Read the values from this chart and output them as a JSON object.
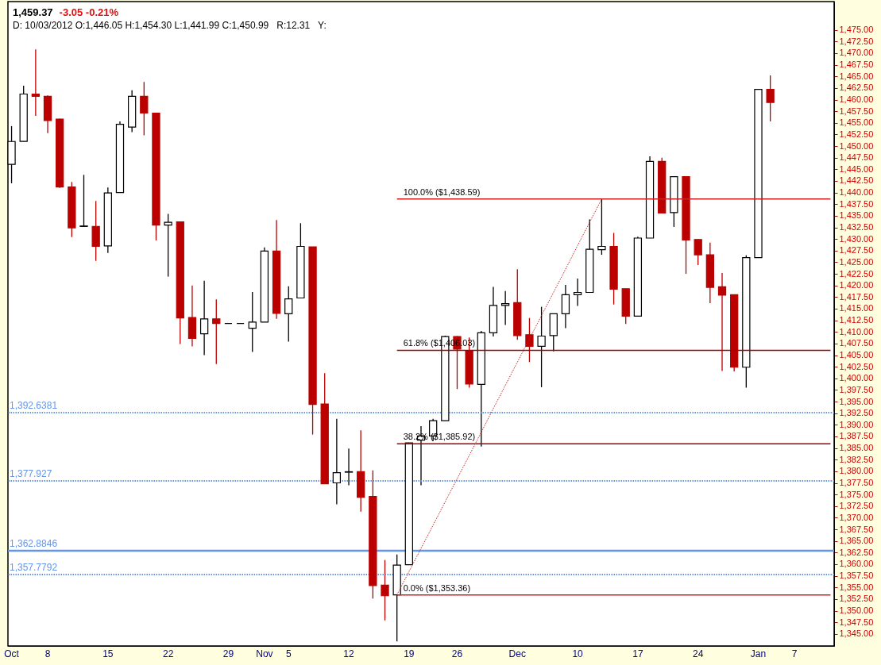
{
  "chart_data": {
    "type": "candlestick",
    "title": "1,459.37",
    "subtitle": "D: 10/03/2012 O:1,446.05 H:1,454.30 L:1,441.99 C:1,450.99   R:12.31   Y:",
    "annotations": [
      "-3.05  -0.21%"
    ],
    "categories": [
      "Oct",
      null,
      null,
      "8",
      null,
      null,
      null,
      null,
      "15",
      null,
      null,
      null,
      null,
      "22",
      null,
      null,
      null,
      null,
      "29",
      null,
      null,
      "Nov",
      null,
      "5",
      null,
      null,
      null,
      null,
      "12",
      null,
      null,
      null,
      null,
      "19",
      null,
      null,
      null,
      "26",
      null,
      null,
      null,
      null,
      "Dec",
      null,
      null,
      null,
      null,
      "10",
      null,
      null,
      null,
      null,
      "17",
      null,
      null,
      null,
      null,
      "24",
      null,
      null,
      null,
      null,
      "Jan",
      null,
      null,
      "7",
      null,
      null,
      null
    ],
    "ohlc": [
      [
        1446.05,
        1454.3,
        1441.99,
        1450.99
      ],
      [
        1451.0,
        1463.0,
        1451.0,
        1461.2
      ],
      [
        1461.2,
        1470.8,
        1456.5,
        1460.7
      ],
      [
        1460.7,
        1460.9,
        1452.8,
        1455.5
      ],
      [
        1455.8,
        1455.9,
        1441.0,
        1441.2
      ],
      [
        1441.2,
        1442.3,
        1430.4,
        1432.4
      ],
      [
        1432.7,
        1443.8,
        1432.7,
        1432.8
      ],
      [
        1432.7,
        1438.2,
        1425.3,
        1428.4
      ],
      [
        1428.5,
        1441.1,
        1427.0,
        1439.9
      ],
      [
        1440.0,
        1455.3,
        1440.0,
        1454.7
      ],
      [
        1454.1,
        1462.0,
        1453.0,
        1460.7
      ],
      [
        1460.7,
        1463.8,
        1452.3,
        1457.1
      ],
      [
        1457.1,
        1457.1,
        1429.7,
        1433.0
      ],
      [
        1433.0,
        1435.4,
        1421.9,
        1433.6
      ],
      [
        1433.7,
        1433.7,
        1407.4,
        1413.0
      ],
      [
        1413.1,
        1420.0,
        1406.9,
        1408.6
      ],
      [
        1409.6,
        1421.0,
        1405.0,
        1412.8
      ],
      [
        1412.8,
        1417.0,
        1403.1,
        1411.8
      ],
      [
        1411.8,
        1411.8,
        1411.8,
        1411.8
      ],
      [
        1411.8,
        1411.8,
        1411.8,
        1411.8
      ],
      [
        1410.8,
        1418.6,
        1405.7,
        1412.1
      ],
      [
        1412.1,
        1428.2,
        1412.1,
        1427.4
      ],
      [
        1427.4,
        1434.1,
        1412.8,
        1414.0
      ],
      [
        1413.9,
        1419.8,
        1407.9,
        1417.1
      ],
      [
        1417.3,
        1433.4,
        1417.3,
        1428.4
      ],
      [
        1428.3,
        1428.3,
        1387.9,
        1394.4
      ],
      [
        1394.5,
        1401.1,
        1377.3,
        1377.3
      ],
      [
        1377.5,
        1391.3,
        1372.9,
        1379.7
      ],
      [
        1379.8,
        1384.9,
        1377.0,
        1379.9
      ],
      [
        1379.9,
        1388.8,
        1371.3,
        1374.4
      ],
      [
        1374.6,
        1380.2,
        1352.6,
        1355.4
      ],
      [
        1355.5,
        1360.9,
        1347.9,
        1353.2
      ],
      [
        1353.4,
        1362.1,
        1343.4,
        1359.8
      ],
      [
        1359.9,
        1386.1,
        1359.9,
        1386.1
      ],
      [
        1386.7,
        1389.7,
        1377.0,
        1387.6
      ],
      [
        1387.6,
        1391.3,
        1386.5,
        1390.9
      ],
      [
        1390.9,
        1409.2,
        1390.9,
        1409.0
      ],
      [
        1409.0,
        1409.1,
        1397.7,
        1406.3
      ],
      [
        1406.0,
        1408.8,
        1398.0,
        1398.8
      ],
      [
        1398.7,
        1410.2,
        1385.3,
        1409.8
      ],
      [
        1409.8,
        1419.7,
        1409.0,
        1415.7
      ],
      [
        1415.7,
        1418.8,
        1411.5,
        1416.1
      ],
      [
        1416.3,
        1423.5,
        1408.3,
        1409.2
      ],
      [
        1409.4,
        1413.0,
        1403.5,
        1406.9
      ],
      [
        1406.9,
        1415.4,
        1398.1,
        1409.1
      ],
      [
        1409.2,
        1413.9,
        1405.8,
        1413.9
      ],
      [
        1413.9,
        1420.1,
        1410.8,
        1418.0
      ],
      [
        1418.0,
        1421.5,
        1415.6,
        1418.5
      ],
      [
        1418.5,
        1434.2,
        1418.5,
        1427.8
      ],
      [
        1427.7,
        1438.6,
        1426.6,
        1428.4
      ],
      [
        1428.4,
        1431.3,
        1415.9,
        1419.2
      ],
      [
        1419.3,
        1419.3,
        1411.7,
        1413.4
      ],
      [
        1413.4,
        1430.5,
        1413.4,
        1430.2
      ],
      [
        1430.2,
        1447.8,
        1430.2,
        1446.7
      ],
      [
        1446.7,
        1447.5,
        1435.6,
        1435.6
      ],
      [
        1435.7,
        1443.4,
        1432.6,
        1443.4
      ],
      [
        1443.4,
        1443.4,
        1422.5,
        1429.8
      ],
      [
        1429.9,
        1429.9,
        1424.4,
        1426.6
      ],
      [
        1426.6,
        1429.2,
        1416.2,
        1419.6
      ],
      [
        1419.7,
        1422.7,
        1401.6,
        1417.9
      ],
      [
        1418.0,
        1418.0,
        1401.5,
        1402.4
      ],
      [
        1402.4,
        1426.5,
        1398.0,
        1426.0
      ],
      [
        1426.0,
        1462.2,
        1426.0,
        1462.2
      ],
      [
        1462.2,
        1465.2,
        1455.3,
        1459.4
      ],
      null,
      null,
      null,
      null,
      null
    ],
    "colors": [
      "#ffffff",
      "#ffffff",
      "#bb0000",
      "#bb0000",
      "#bb0000",
      "#bb0000",
      "#ffffff",
      "#bb0000",
      "#ffffff",
      "#ffffff",
      "#ffffff",
      "#bb0000",
      "#bb0000",
      "#ffffff",
      "#bb0000",
      "#bb0000",
      "#ffffff",
      "#bb0000",
      "#000000",
      "#000000",
      "#ffffff",
      "#ffffff",
      "#bb0000",
      "#ffffff",
      "#ffffff",
      "#bb0000",
      "#bb0000",
      "#ffffff",
      "#ffffff",
      "#bb0000",
      "#bb0000",
      "#bb0000",
      "#ffffff",
      "#ffffff",
      "#ffffff",
      "#ffffff",
      "#ffffff",
      "#bb0000",
      "#bb0000",
      "#ffffff",
      "#ffffff",
      "#ffffff",
      "#bb0000",
      "#bb0000",
      "#ffffff",
      "#ffffff",
      "#ffffff",
      "#ffffff",
      "#ffffff",
      "#ffffff",
      "#bb0000",
      "#bb0000",
      "#ffffff",
      "#ffffff",
      "#bb0000",
      "#ffffff",
      "#bb0000",
      "#bb0000",
      "#bb0000",
      "#bb0000",
      "#bb0000",
      "#ffffff",
      "#ffffff",
      "#bb0000",
      null,
      null,
      null,
      null,
      null
    ],
    "series": [
      {
        "type": "line",
        "name": "100.0%  ($1,438.59)",
        "color": "#cc2222",
        "values": [
          null,
          null,
          null,
          null,
          null,
          null,
          null,
          null,
          null,
          null,
          null,
          null,
          null,
          null,
          null,
          null,
          null,
          null,
          null,
          null,
          null,
          null,
          null,
          null,
          null,
          null,
          null,
          null,
          null,
          null,
          null,
          null,
          1438.59,
          1438.59,
          1438.59,
          1438.59,
          1438.59,
          1438.59,
          1438.59,
          1438.59,
          1438.59,
          1438.59,
          1438.59,
          1438.59,
          1438.59,
          1438.59,
          1438.59,
          1438.59,
          1438.59,
          1438.59,
          1438.59,
          1438.59,
          1438.59,
          1438.59,
          1438.59,
          1438.59,
          1438.59,
          1438.59,
          1438.59,
          1438.59,
          1438.59,
          1438.59,
          1438.59,
          1438.59,
          1438.59,
          1438.59,
          1438.59,
          1438.59,
          1438.59
        ]
      },
      {
        "type": "line",
        "name": "61.8%  ($1,406.03)",
        "color": "#a00000",
        "values": [
          null,
          null,
          null,
          null,
          null,
          null,
          null,
          null,
          null,
          null,
          null,
          null,
          null,
          null,
          null,
          null,
          null,
          null,
          null,
          null,
          null,
          null,
          null,
          null,
          null,
          null,
          null,
          null,
          null,
          null,
          null,
          null,
          1406.03,
          1406.03,
          1406.03,
          1406.03,
          1406.03,
          1406.03,
          1406.03,
          1406.03,
          1406.03,
          1406.03,
          1406.03,
          1406.03,
          1406.03,
          1406.03,
          1406.03,
          1406.03,
          1406.03,
          1406.03,
          1406.03,
          1406.03,
          1406.03,
          1406.03,
          1406.03,
          1406.03,
          1406.03,
          1406.03,
          1406.03,
          1406.03,
          1406.03,
          1406.03,
          1406.03,
          1406.03,
          1406.03,
          1406.03,
          1406.03,
          1406.03,
          1406.03
        ]
      },
      {
        "type": "line",
        "name": "38.2%  ($1,385.92)",
        "color": "#a00000",
        "values": [
          null,
          null,
          null,
          null,
          null,
          null,
          null,
          null,
          null,
          null,
          null,
          null,
          null,
          null,
          null,
          null,
          null,
          null,
          null,
          null,
          null,
          null,
          null,
          null,
          null,
          null,
          null,
          null,
          null,
          null,
          null,
          null,
          1385.92,
          1385.92,
          1385.92,
          1385.92,
          1385.92,
          1385.92,
          1385.92,
          1385.92,
          1385.92,
          1385.92,
          1385.92,
          1385.92,
          1385.92,
          1385.92,
          1385.92,
          1385.92,
          1385.92,
          1385.92,
          1385.92,
          1385.92,
          1385.92,
          1385.92,
          1385.92,
          1385.92,
          1385.92,
          1385.92,
          1385.92,
          1385.92,
          1385.92,
          1385.92,
          1385.92,
          1385.92,
          1385.92,
          1385.92,
          1385.92,
          1385.92,
          1385.92
        ]
      },
      {
        "type": "line",
        "name": "0.0%  ($1,353.36)",
        "color": "#cc2222",
        "values": [
          null,
          null,
          null,
          null,
          null,
          null,
          null,
          null,
          null,
          null,
          null,
          null,
          null,
          null,
          null,
          null,
          null,
          null,
          null,
          null,
          null,
          null,
          null,
          null,
          null,
          null,
          null,
          null,
          null,
          null,
          null,
          null,
          1353.36,
          1353.36,
          1353.36,
          1353.36,
          1353.36,
          1353.36,
          1353.36,
          1353.36,
          1353.36,
          1353.36,
          1353.36,
          1353.36,
          1353.36,
          1353.36,
          1353.36,
          1353.36,
          1353.36,
          1353.36,
          1353.36,
          1353.36,
          1353.36,
          1353.36,
          1353.36,
          1353.36,
          1353.36,
          1353.36,
          1353.36,
          1353.36,
          1353.36,
          1353.36,
          1353.36,
          1353.36,
          1353.36,
          1353.36,
          1353.36,
          1353.36,
          1353.36
        ]
      },
      {
        "type": "line",
        "color": "#cc2222",
        "line_style": "dotted",
        "values": [
          null,
          null,
          null,
          null,
          null,
          null,
          null,
          null,
          null,
          null,
          null,
          null,
          null,
          null,
          null,
          null,
          null,
          null,
          null,
          null,
          null,
          null,
          null,
          null,
          null,
          null,
          null,
          null,
          null,
          null,
          null,
          null,
          1353.4,
          1358.4,
          1363.4,
          1368.4,
          1373.4,
          1378.4,
          1383.4,
          1388.4,
          1393.5,
          1398.5,
          1403.5,
          1408.5,
          1413.5,
          1418.5,
          1423.5,
          1428.6,
          1433.6,
          1438.6,
          null,
          null,
          null,
          null,
          null,
          null,
          null,
          null,
          null,
          null,
          null,
          null,
          null,
          null,
          null,
          null,
          null,
          null,
          null
        ]
      }
    ],
    "ref_lines": [
      {
        "axis": "y",
        "value": 1392.6381,
        "label": "1,392.6381",
        "color": "#6495ed",
        "line_style": "dotted"
      },
      {
        "axis": "y",
        "value": 1377.927,
        "label": "1,377.927",
        "color": "#6495ed",
        "line_style": "dotted"
      },
      {
        "axis": "y",
        "value": 1362.8846,
        "label": "1,362.8846",
        "color": "#6495ed",
        "line_style": "solid"
      },
      {
        "axis": "y",
        "value": 1357.7792,
        "label": "1,357.7792",
        "color": "#6495ed",
        "line_style": "dotted"
      }
    ],
    "ylim": [
      1342.4,
      1481.1
    ],
    "yticks": [
      {
        "value": 1345,
        "label": "1,345.00"
      },
      {
        "value": 1347.5,
        "label": "1,347.50"
      },
      {
        "value": 1350,
        "label": "1,350.00"
      },
      {
        "value": 1352.5,
        "label": "1,352.50"
      },
      {
        "value": 1355,
        "label": "1,355.00"
      },
      {
        "value": 1357.5,
        "label": "1,357.50"
      },
      {
        "value": 1360,
        "label": "1,360.00"
      },
      {
        "value": 1362.5,
        "label": "1,362.50"
      },
      {
        "value": 1365,
        "label": "1,365.00"
      },
      {
        "value": 1367.5,
        "label": "1,367.50"
      },
      {
        "value": 1370,
        "label": "1,370.00"
      },
      {
        "value": 1372.5,
        "label": "1,372.50"
      },
      {
        "value": 1375,
        "label": "1,375.00"
      },
      {
        "value": 1377.5,
        "label": "1,377.50"
      },
      {
        "value": 1380,
        "label": "1,380.00"
      },
      {
        "value": 1382.5,
        "label": "1,382.50"
      },
      {
        "value": 1385,
        "label": "1,385.00"
      },
      {
        "value": 1387.5,
        "label": "1,387.50"
      },
      {
        "value": 1390,
        "label": "1,390.00"
      },
      {
        "value": 1392.5,
        "label": "1,392.50"
      },
      {
        "value": 1395,
        "label": "1,395.00"
      },
      {
        "value": 1397.5,
        "label": "1,397.50"
      },
      {
        "value": 1400,
        "label": "1,400.00"
      },
      {
        "value": 1402.5,
        "label": "1,402.50"
      },
      {
        "value": 1405,
        "label": "1,405.00"
      },
      {
        "value": 1407.5,
        "label": "1,407.50"
      },
      {
        "value": 1410,
        "label": "1,410.00"
      },
      {
        "value": 1412.5,
        "label": "1,412.50"
      },
      {
        "value": 1415,
        "label": "1,415.00"
      },
      {
        "value": 1417.5,
        "label": "1,417.50"
      },
      {
        "value": 1420,
        "label": "1,420.00"
      },
      {
        "value": 1422.5,
        "label": "1,422.50"
      },
      {
        "value": 1425,
        "label": "1,425.00"
      },
      {
        "value": 1427.5,
        "label": "1,427.50"
      },
      {
        "value": 1430,
        "label": "1,430.00"
      },
      {
        "value": 1432.5,
        "label": "1,432.50"
      },
      {
        "value": 1435,
        "label": "1,435.00"
      },
      {
        "value": 1437.5,
        "label": "1,437.50"
      },
      {
        "value": 1440,
        "label": "1,440.00"
      },
      {
        "value": 1442.5,
        "label": "1,442.50"
      },
      {
        "value": 1445,
        "label": "1,445.00"
      },
      {
        "value": 1447.5,
        "label": "1,447.50"
      },
      {
        "value": 1450,
        "label": "1,450.00"
      },
      {
        "value": 1452.5,
        "label": "1,452.50"
      },
      {
        "value": 1455,
        "label": "1,455.00"
      },
      {
        "value": 1457.5,
        "label": "1,457.50"
      },
      {
        "value": 1460,
        "label": "1,460.00"
      },
      {
        "value": 1462.5,
        "label": "1,462.50"
      },
      {
        "value": 1465,
        "label": "1,465.00"
      },
      {
        "value": 1467.5,
        "label": "1,467.50"
      },
      {
        "value": 1470,
        "label": "1,470.00"
      },
      {
        "value": 1472.5,
        "label": "1,472.50"
      },
      {
        "value": 1475,
        "label": "1,475.00"
      }
    ]
  }
}
